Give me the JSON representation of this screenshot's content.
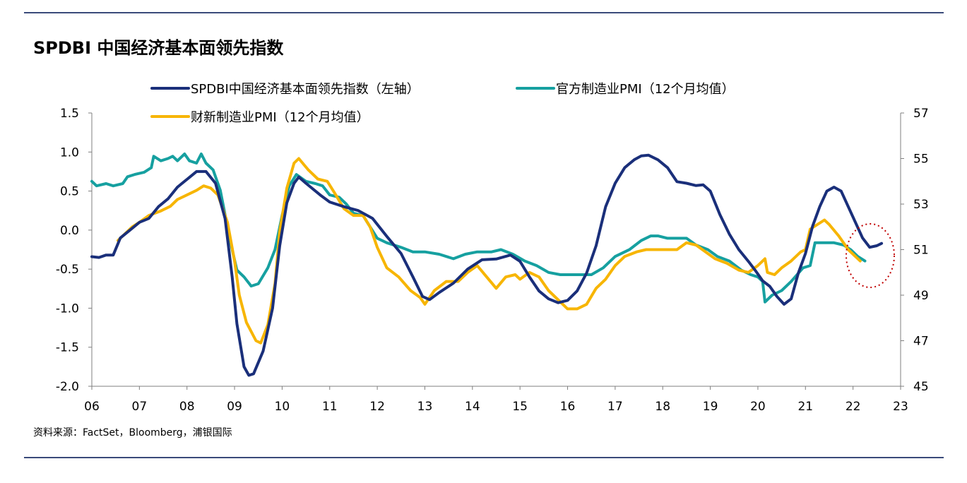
{
  "title": "SPDBI 中国经济基本面领先指数",
  "source": "资料来源：FactSet，Bloomberg，浦银国际",
  "chart_data": {
    "type": "line",
    "title": "SPDBI 中国经济基本面领先指数",
    "x_ticks": [
      "06",
      "07",
      "08",
      "09",
      "10",
      "11",
      "12",
      "13",
      "14",
      "15",
      "16",
      "17",
      "18",
      "19",
      "20",
      "21",
      "22",
      "23"
    ],
    "x_range": [
      2006,
      2023
    ],
    "y_left": {
      "range": [
        -2.0,
        1.5
      ],
      "ticks": [
        "1.5",
        "1.0",
        "0.5",
        "0.0",
        "-0.5",
        "-1.0",
        "-1.5",
        "-2.0"
      ]
    },
    "y_right": {
      "range": [
        45,
        57
      ],
      "ticks": [
        "57",
        "55",
        "53",
        "51",
        "49",
        "47",
        "45"
      ]
    },
    "grid": false,
    "legend_position": "top",
    "annotation": "red dotted circle around latest readings (2022)",
    "series": [
      {
        "name": "SPDBI中国经济基本面领先指数（左轴）",
        "axis": "left",
        "color": "#1a2f7a",
        "points": [
          [
            2006.0,
            -0.34
          ],
          [
            2006.15,
            -0.35
          ],
          [
            2006.3,
            -0.32
          ],
          [
            2006.45,
            -0.32
          ],
          [
            2006.6,
            -0.1
          ],
          [
            2006.8,
            0.0
          ],
          [
            2007.0,
            0.1
          ],
          [
            2007.2,
            0.15
          ],
          [
            2007.4,
            0.3
          ],
          [
            2007.6,
            0.4
          ],
          [
            2007.8,
            0.55
          ],
          [
            2008.0,
            0.65
          ],
          [
            2008.2,
            0.75
          ],
          [
            2008.4,
            0.75
          ],
          [
            2008.6,
            0.6
          ],
          [
            2008.8,
            0.15
          ],
          [
            2008.95,
            -0.6
          ],
          [
            2009.05,
            -1.2
          ],
          [
            2009.2,
            -1.75
          ],
          [
            2009.3,
            -1.86
          ],
          [
            2009.4,
            -1.84
          ],
          [
            2009.6,
            -1.55
          ],
          [
            2009.8,
            -1.0
          ],
          [
            2009.95,
            -0.2
          ],
          [
            2010.1,
            0.35
          ],
          [
            2010.25,
            0.6
          ],
          [
            2010.35,
            0.68
          ],
          [
            2010.5,
            0.6
          ],
          [
            2010.8,
            0.45
          ],
          [
            2011.0,
            0.36
          ],
          [
            2011.3,
            0.3
          ],
          [
            2011.6,
            0.25
          ],
          [
            2011.9,
            0.15
          ],
          [
            2012.2,
            -0.08
          ],
          [
            2012.5,
            -0.3
          ],
          [
            2012.75,
            -0.6
          ],
          [
            2012.95,
            -0.85
          ],
          [
            2013.1,
            -0.89
          ],
          [
            2013.3,
            -0.8
          ],
          [
            2013.6,
            -0.68
          ],
          [
            2013.9,
            -0.5
          ],
          [
            2014.2,
            -0.38
          ],
          [
            2014.5,
            -0.37
          ],
          [
            2014.8,
            -0.32
          ],
          [
            2015.0,
            -0.4
          ],
          [
            2015.2,
            -0.6
          ],
          [
            2015.4,
            -0.78
          ],
          [
            2015.6,
            -0.88
          ],
          [
            2015.8,
            -0.93
          ],
          [
            2016.0,
            -0.9
          ],
          [
            2016.2,
            -0.78
          ],
          [
            2016.4,
            -0.55
          ],
          [
            2016.6,
            -0.2
          ],
          [
            2016.8,
            0.3
          ],
          [
            2017.0,
            0.6
          ],
          [
            2017.2,
            0.8
          ],
          [
            2017.4,
            0.9
          ],
          [
            2017.55,
            0.95
          ],
          [
            2017.7,
            0.96
          ],
          [
            2017.9,
            0.9
          ],
          [
            2018.1,
            0.8
          ],
          [
            2018.3,
            0.62
          ],
          [
            2018.5,
            0.6
          ],
          [
            2018.7,
            0.57
          ],
          [
            2018.85,
            0.58
          ],
          [
            2019.0,
            0.5
          ],
          [
            2019.2,
            0.2
          ],
          [
            2019.4,
            -0.05
          ],
          [
            2019.6,
            -0.25
          ],
          [
            2019.8,
            -0.4
          ],
          [
            2019.95,
            -0.52
          ],
          [
            2020.1,
            -0.65
          ],
          [
            2020.25,
            -0.72
          ],
          [
            2020.4,
            -0.85
          ],
          [
            2020.55,
            -0.95
          ],
          [
            2020.7,
            -0.88
          ],
          [
            2020.85,
            -0.55
          ],
          [
            2021.0,
            -0.3
          ],
          [
            2021.15,
            0.05
          ],
          [
            2021.3,
            0.3
          ],
          [
            2021.45,
            0.5
          ],
          [
            2021.6,
            0.55
          ],
          [
            2021.75,
            0.5
          ],
          [
            2021.9,
            0.3
          ],
          [
            2022.05,
            0.1
          ],
          [
            2022.2,
            -0.1
          ],
          [
            2022.35,
            -0.22
          ],
          [
            2022.5,
            -0.2
          ],
          [
            2022.6,
            -0.17
          ]
        ]
      },
      {
        "name": "官方制造业PMI（12个月均值）",
        "axis": "right",
        "color": "#16a0a0",
        "points": [
          [
            2006.0,
            54.0
          ],
          [
            2006.1,
            53.8
          ],
          [
            2006.3,
            53.9
          ],
          [
            2006.45,
            53.8
          ],
          [
            2006.65,
            53.9
          ],
          [
            2006.75,
            54.2
          ],
          [
            2006.9,
            54.3
          ],
          [
            2007.1,
            54.4
          ],
          [
            2007.25,
            54.6
          ],
          [
            2007.3,
            55.1
          ],
          [
            2007.45,
            54.9
          ],
          [
            2007.6,
            55.0
          ],
          [
            2007.7,
            55.1
          ],
          [
            2007.8,
            54.9
          ],
          [
            2007.95,
            55.2
          ],
          [
            2008.05,
            54.9
          ],
          [
            2008.2,
            54.8
          ],
          [
            2008.3,
            55.2
          ],
          [
            2008.4,
            54.8
          ],
          [
            2008.55,
            54.5
          ],
          [
            2008.7,
            53.6
          ],
          [
            2008.85,
            52.0
          ],
          [
            2008.95,
            51.0
          ],
          [
            2009.05,
            50.1
          ],
          [
            2009.2,
            49.8
          ],
          [
            2009.35,
            49.4
          ],
          [
            2009.5,
            49.5
          ],
          [
            2009.7,
            50.2
          ],
          [
            2009.85,
            51.0
          ],
          [
            2010.0,
            52.5
          ],
          [
            2010.15,
            53.8
          ],
          [
            2010.3,
            54.3
          ],
          [
            2010.5,
            54.0
          ],
          [
            2010.7,
            53.9
          ],
          [
            2010.85,
            53.8
          ],
          [
            2011.0,
            53.4
          ],
          [
            2011.2,
            53.3
          ],
          [
            2011.35,
            53.0
          ],
          [
            2011.5,
            52.6
          ],
          [
            2011.7,
            52.5
          ],
          [
            2011.85,
            52.0
          ],
          [
            2012.0,
            51.5
          ],
          [
            2012.2,
            51.3
          ],
          [
            2012.5,
            51.1
          ],
          [
            2012.75,
            50.9
          ],
          [
            2013.0,
            50.9
          ],
          [
            2013.3,
            50.8
          ],
          [
            2013.6,
            50.6
          ],
          [
            2013.85,
            50.8
          ],
          [
            2014.1,
            50.9
          ],
          [
            2014.4,
            50.9
          ],
          [
            2014.6,
            51.0
          ],
          [
            2014.85,
            50.8
          ],
          [
            2015.1,
            50.5
          ],
          [
            2015.35,
            50.3
          ],
          [
            2015.6,
            50.0
          ],
          [
            2015.85,
            49.9
          ],
          [
            2016.2,
            49.9
          ],
          [
            2016.5,
            49.9
          ],
          [
            2016.75,
            50.2
          ],
          [
            2017.0,
            50.7
          ],
          [
            2017.3,
            51.0
          ],
          [
            2017.55,
            51.4
          ],
          [
            2017.75,
            51.6
          ],
          [
            2017.9,
            51.6
          ],
          [
            2018.1,
            51.5
          ],
          [
            2018.3,
            51.5
          ],
          [
            2018.5,
            51.5
          ],
          [
            2018.7,
            51.2
          ],
          [
            2018.95,
            51.0
          ],
          [
            2019.15,
            50.7
          ],
          [
            2019.4,
            50.5
          ],
          [
            2019.65,
            50.1
          ],
          [
            2019.85,
            49.9
          ],
          [
            2020.0,
            49.8
          ],
          [
            2020.1,
            49.6
          ],
          [
            2020.15,
            48.7
          ],
          [
            2020.3,
            49.0
          ],
          [
            2020.5,
            49.2
          ],
          [
            2020.7,
            49.6
          ],
          [
            2020.95,
            50.2
          ],
          [
            2021.1,
            50.3
          ],
          [
            2021.2,
            51.3
          ],
          [
            2021.4,
            51.3
          ],
          [
            2021.6,
            51.3
          ],
          [
            2021.8,
            51.2
          ],
          [
            2021.95,
            51.0
          ],
          [
            2022.1,
            50.7
          ],
          [
            2022.25,
            50.5
          ]
        ]
      },
      {
        "name": "财新制造业PMI（12个月均值）",
        "axis": "right",
        "color": "#f7b500",
        "points": [
          [
            2006.55,
            51.4
          ],
          [
            2006.7,
            51.7
          ],
          [
            2006.85,
            52.0
          ],
          [
            2007.0,
            52.2
          ],
          [
            2007.2,
            52.5
          ],
          [
            2007.45,
            52.7
          ],
          [
            2007.65,
            52.9
          ],
          [
            2007.8,
            53.2
          ],
          [
            2008.0,
            53.4
          ],
          [
            2008.2,
            53.6
          ],
          [
            2008.35,
            53.8
          ],
          [
            2008.5,
            53.7
          ],
          [
            2008.65,
            53.4
          ],
          [
            2008.85,
            52.2
          ],
          [
            2009.0,
            50.5
          ],
          [
            2009.1,
            49.0
          ],
          [
            2009.25,
            47.8
          ],
          [
            2009.45,
            47.0
          ],
          [
            2009.55,
            46.9
          ],
          [
            2009.7,
            47.7
          ],
          [
            2009.85,
            49.5
          ],
          [
            2009.95,
            51.8
          ],
          [
            2010.1,
            53.7
          ],
          [
            2010.25,
            54.8
          ],
          [
            2010.35,
            55.0
          ],
          [
            2010.55,
            54.5
          ],
          [
            2010.75,
            54.1
          ],
          [
            2010.95,
            54.0
          ],
          [
            2011.1,
            53.5
          ],
          [
            2011.3,
            52.8
          ],
          [
            2011.5,
            52.5
          ],
          [
            2011.7,
            52.5
          ],
          [
            2011.85,
            52.0
          ],
          [
            2012.0,
            51.1
          ],
          [
            2012.2,
            50.2
          ],
          [
            2012.45,
            49.8
          ],
          [
            2012.7,
            49.2
          ],
          [
            2012.9,
            48.9
          ],
          [
            2013.0,
            48.6
          ],
          [
            2013.2,
            49.2
          ],
          [
            2013.45,
            49.6
          ],
          [
            2013.7,
            49.6
          ],
          [
            2013.9,
            50.0
          ],
          [
            2014.1,
            50.3
          ],
          [
            2014.3,
            49.8
          ],
          [
            2014.5,
            49.3
          ],
          [
            2014.7,
            49.8
          ],
          [
            2014.9,
            49.9
          ],
          [
            2015.0,
            49.7
          ],
          [
            2015.2,
            50.0
          ],
          [
            2015.4,
            49.8
          ],
          [
            2015.6,
            49.2
          ],
          [
            2015.8,
            48.8
          ],
          [
            2016.0,
            48.4
          ],
          [
            2016.2,
            48.4
          ],
          [
            2016.4,
            48.6
          ],
          [
            2016.6,
            49.3
          ],
          [
            2016.8,
            49.7
          ],
          [
            2017.0,
            50.3
          ],
          [
            2017.2,
            50.7
          ],
          [
            2017.45,
            50.9
          ],
          [
            2017.65,
            51.0
          ],
          [
            2017.85,
            51.0
          ],
          [
            2018.1,
            51.0
          ],
          [
            2018.3,
            51.0
          ],
          [
            2018.5,
            51.3
          ],
          [
            2018.7,
            51.2
          ],
          [
            2018.9,
            50.9
          ],
          [
            2019.1,
            50.6
          ],
          [
            2019.35,
            50.4
          ],
          [
            2019.6,
            50.1
          ],
          [
            2019.8,
            50.0
          ],
          [
            2020.0,
            50.3
          ],
          [
            2020.15,
            50.6
          ],
          [
            2020.2,
            50.0
          ],
          [
            2020.35,
            49.9
          ],
          [
            2020.5,
            50.2
          ],
          [
            2020.7,
            50.5
          ],
          [
            2020.9,
            50.9
          ],
          [
            2021.0,
            51.0
          ],
          [
            2021.1,
            51.9
          ],
          [
            2021.25,
            52.1
          ],
          [
            2021.4,
            52.3
          ],
          [
            2021.5,
            52.1
          ],
          [
            2021.7,
            51.6
          ],
          [
            2021.9,
            51.0
          ],
          [
            2022.05,
            50.7
          ],
          [
            2022.15,
            50.5
          ]
        ]
      }
    ]
  }
}
